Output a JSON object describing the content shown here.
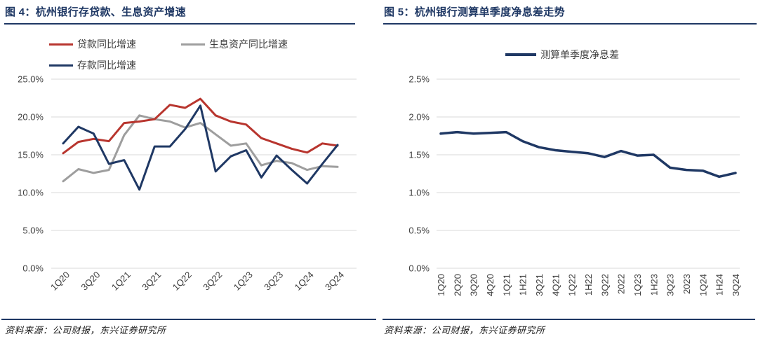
{
  "panels": [
    {
      "title": "图 4：杭州银行存贷款、生息资产增速",
      "source": "资料来源：公司财报，东兴证券研究所"
    },
    {
      "title": "图 5：杭州银行测算单季度净息差走势",
      "source": "资料来源：公司财报，东兴证券研究所"
    }
  ],
  "colors": {
    "accent_navy": "#1f3864",
    "line_red": "#b8352e",
    "line_gray": "#9e9e9e",
    "gridline": "#d9d9d9",
    "tick_text": "#404040"
  },
  "chart_data": [
    {
      "type": "line",
      "title": "图 4：杭州银行存贷款、生息资产增速",
      "categories": [
        "1Q20",
        "2Q20",
        "3Q20",
        "4Q20",
        "1Q21",
        "2Q21",
        "3Q21",
        "4Q21",
        "1Q22",
        "2Q22",
        "3Q22",
        "4Q22",
        "1Q23",
        "2Q23",
        "3Q23",
        "4Q23",
        "1Q24",
        "2Q24",
        "3Q24"
      ],
      "x_tick_labels_shown": [
        "1Q20",
        "3Q20",
        "1Q21",
        "3Q21",
        "1Q22",
        "3Q22",
        "1Q23",
        "3Q23",
        "1Q24",
        "3Q24"
      ],
      "series": [
        {
          "key": "loan-yoy",
          "name": "贷款同比增速",
          "color": "#b8352e",
          "values": [
            15.2,
            16.7,
            17.1,
            16.8,
            19.2,
            19.4,
            19.7,
            21.6,
            21.2,
            22.4,
            20.2,
            19.4,
            19.0,
            17.2,
            16.5,
            15.8,
            15.3,
            16.5,
            16.2
          ]
        },
        {
          "key": "assets-yoy",
          "name": "生息资产同比增速",
          "color": "#9e9e9e",
          "values": [
            11.5,
            13.1,
            12.6,
            13.0,
            17.6,
            20.2,
            19.7,
            19.4,
            18.6,
            19.2,
            17.7,
            16.2,
            16.5,
            13.6,
            14.2,
            13.9,
            13.0,
            13.5,
            13.4
          ]
        },
        {
          "key": "deposit-yoy",
          "name": "存款同比增速",
          "color": "#1f3864",
          "values": [
            16.5,
            18.7,
            17.8,
            13.8,
            14.3,
            10.4,
            16.1,
            16.1,
            18.4,
            21.5,
            12.8,
            14.8,
            15.6,
            12.0,
            14.9,
            13.0,
            11.2,
            13.8,
            16.3
          ]
        }
      ],
      "ylim": [
        0,
        25
      ],
      "yticks": [
        {
          "v": 25,
          "label": "25.0%"
        },
        {
          "v": 20,
          "label": "20.0%"
        },
        {
          "v": 15,
          "label": "15.0%"
        },
        {
          "v": 10,
          "label": "10.0%"
        },
        {
          "v": 5,
          "label": "5.0%"
        },
        {
          "v": 0,
          "label": "0.0%"
        }
      ],
      "grid": true,
      "legend_position": "top",
      "xlabel": "",
      "ylabel": ""
    },
    {
      "type": "line",
      "title": "图 5：杭州银行测算单季度净息差走势",
      "categories": [
        "1Q20",
        "2Q20",
        "3Q20",
        "4Q20",
        "1Q21",
        "1H21",
        "3Q21",
        "4Q21",
        "1Q22",
        "1H22",
        "3Q22",
        "2022",
        "1Q23",
        "1H23",
        "3Q23",
        "2023",
        "1Q24",
        "1H24",
        "3Q24"
      ],
      "series": [
        {
          "key": "quarterly-nim",
          "name": "测算单季度净息差",
          "color": "#1f3864",
          "values": [
            1.78,
            1.8,
            1.78,
            1.79,
            1.8,
            1.68,
            1.6,
            1.56,
            1.54,
            1.52,
            1.47,
            1.55,
            1.49,
            1.5,
            1.33,
            1.3,
            1.29,
            1.21,
            1.26
          ]
        }
      ],
      "ylim": [
        0,
        2.5
      ],
      "yticks": [
        {
          "v": 2.5,
          "label": "2.5%"
        },
        {
          "v": 2.0,
          "label": "2.0%"
        },
        {
          "v": 1.5,
          "label": "1.5%"
        },
        {
          "v": 1.0,
          "label": "1.0%"
        },
        {
          "v": 0.5,
          "label": "0.5%"
        },
        {
          "v": 0,
          "label": "0.0%"
        }
      ],
      "grid": true,
      "legend_position": "top",
      "xlabel": "",
      "ylabel": ""
    }
  ]
}
